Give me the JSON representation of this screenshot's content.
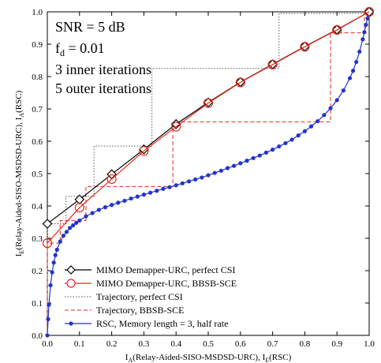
{
  "chart_data": {
    "type": "line",
    "xlim": [
      0,
      1
    ],
    "ylim": [
      0,
      1
    ],
    "xticks": [
      "0.0",
      "0.1",
      "0.2",
      "0.3",
      "0.4",
      "0.5",
      "0.6",
      "0.7",
      "0.8",
      "0.9",
      "1.0"
    ],
    "yticks": [
      "0.0",
      "0.1",
      "0.2",
      "0.3",
      "0.4",
      "0.5",
      "0.6",
      "0.7",
      "0.8",
      "0.9",
      "1.0"
    ],
    "xlabel": {
      "main": "I",
      "sub": "A",
      "rest": "(Relay-Aided-SISO-MSDSD-URC), I",
      "sub2": "E",
      "rest2": "(RSC)"
    },
    "ylabel": {
      "main": "I",
      "sub": "E",
      "rest": "(Relay-Aided-SISO-MSDSD-URC), I",
      "sub2": "A",
      "rest2": "(RSC)"
    },
    "annotations": {
      "snr": "SNR = 5 dB",
      "fd_main": "f",
      "fd_sub": "d",
      "fd_rest": " = 0.01",
      "inner": "3 inner iterations",
      "outer": "5 outer iterations"
    },
    "legend_position": "bottom-right",
    "series": [
      {
        "name": "MIMO Demapper-URC, perfect CSI",
        "color": "#000000",
        "marker": "diamond",
        "line": "solid",
        "x": [
          0,
          0.1,
          0.2,
          0.3,
          0.4,
          0.5,
          0.6,
          0.7,
          0.8,
          0.9,
          1.0
        ],
        "y": [
          0.345,
          0.42,
          0.498,
          0.575,
          0.653,
          0.72,
          0.783,
          0.838,
          0.893,
          0.945,
          1.0
        ]
      },
      {
        "name": "MIMO Demapper-URC, BBSB-SCE",
        "color": "#e8281c",
        "marker": "circle",
        "line": "solid",
        "x": [
          0,
          0.1,
          0.2,
          0.3,
          0.4,
          0.5,
          0.6,
          0.7,
          0.8,
          0.9,
          1.0
        ],
        "y": [
          0.285,
          0.395,
          0.483,
          0.57,
          0.645,
          0.718,
          0.782,
          0.837,
          0.892,
          0.944,
          1.0
        ]
      },
      {
        "name": "Trajectory, perfect CSI",
        "color": "#555555",
        "marker": "none",
        "line": "dotted",
        "x": [
          0,
          0,
          0.058,
          0.058,
          0.145,
          0.145,
          0.325,
          0.325,
          0.72,
          0.72,
          0.985,
          0.985
        ],
        "y": [
          0,
          0.345,
          0.345,
          0.43,
          0.43,
          0.585,
          0.585,
          0.825,
          0.825,
          0.995,
          0.995,
          1.0
        ]
      },
      {
        "name": "Trajectory, BBSB-SCE",
        "color": "#e8281c",
        "marker": "none",
        "line": "dashed",
        "x": [
          0,
          0,
          0.04,
          0.04,
          0.12,
          0.12,
          0.39,
          0.39,
          0.88,
          0.88,
          0.985,
          0.985
        ],
        "y": [
          0,
          0.285,
          0.285,
          0.355,
          0.355,
          0.46,
          0.46,
          0.66,
          0.66,
          0.935,
          0.935,
          1.0
        ]
      },
      {
        "name": "RSC, Memory length = 3, half rate",
        "color": "#2233cc",
        "marker": "dot",
        "line": "solid",
        "x": [
          0.0,
          0.0025,
          0.005,
          0.01,
          0.015,
          0.02,
          0.025,
          0.03,
          0.04,
          0.05,
          0.06,
          0.07,
          0.08,
          0.09,
          0.1,
          0.12,
          0.14,
          0.16,
          0.18,
          0.2,
          0.22,
          0.24,
          0.26,
          0.28,
          0.3,
          0.32,
          0.34,
          0.36,
          0.38,
          0.4,
          0.42,
          0.44,
          0.46,
          0.48,
          0.5,
          0.52,
          0.54,
          0.56,
          0.58,
          0.6,
          0.62,
          0.64,
          0.66,
          0.68,
          0.7,
          0.72,
          0.74,
          0.76,
          0.78,
          0.8,
          0.82,
          0.84,
          0.86,
          0.88,
          0.9,
          0.92,
          0.94,
          0.95,
          0.96,
          0.97,
          0.98,
          0.985,
          0.99,
          0.995,
          1.0
        ],
        "y": [
          0.0,
          0.05,
          0.095,
          0.155,
          0.195,
          0.225,
          0.248,
          0.265,
          0.29,
          0.308,
          0.32,
          0.332,
          0.34,
          0.348,
          0.355,
          0.368,
          0.378,
          0.388,
          0.396,
          0.403,
          0.41,
          0.416,
          0.423,
          0.429,
          0.435,
          0.441,
          0.447,
          0.453,
          0.458,
          0.464,
          0.47,
          0.476,
          0.482,
          0.488,
          0.495,
          0.502,
          0.509,
          0.517,
          0.524,
          0.532,
          0.54,
          0.548,
          0.556,
          0.565,
          0.574,
          0.584,
          0.594,
          0.605,
          0.618,
          0.631,
          0.646,
          0.662,
          0.681,
          0.702,
          0.727,
          0.757,
          0.795,
          0.818,
          0.845,
          0.877,
          0.915,
          0.937,
          0.96,
          0.98,
          1.0
        ]
      }
    ]
  }
}
